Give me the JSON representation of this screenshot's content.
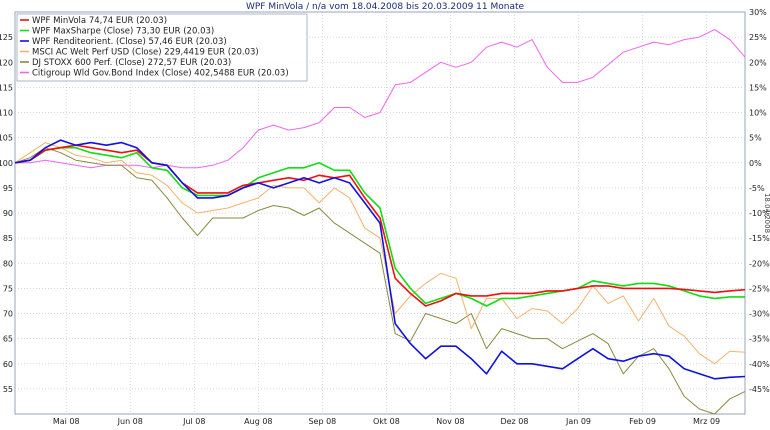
{
  "chart_data": {
    "type": "line",
    "title": "WPF MinVola / n/a vom 18.04.2008 bis 20.03.2009 11 Monate",
    "right_axis_date_label": "18.04.2008",
    "x_tick_labels": [
      "Mai 08",
      "Jun 08",
      "Jul 08",
      "Aug 08",
      "Sep 08",
      "Okt 08",
      "Nov 08",
      "Dez 08",
      "Jan 09",
      "Feb 09",
      "Mrz 09"
    ],
    "x_range": [
      0,
      48
    ],
    "left_axis": {
      "ylim": [
        50,
        130
      ],
      "ticks": [
        55,
        60,
        65,
        70,
        75,
        80,
        85,
        90,
        95,
        100,
        105,
        110,
        115,
        120,
        125
      ]
    },
    "right_axis": {
      "ylim": [
        -50,
        30
      ],
      "ticks": [
        30,
        25,
        20,
        15,
        10,
        5,
        0,
        -5,
        -10,
        -15,
        -20,
        -25,
        -30,
        -35,
        -40,
        -45
      ],
      "unit": "%"
    },
    "grid": true,
    "legend_position": "top-left",
    "series": [
      {
        "name": "WPF MinVola 74,74 EUR (20.03)",
        "color": "#ee1111",
        "values": [
          100,
          100.5,
          102.5,
          103,
          103.5,
          103,
          102.5,
          102,
          102.5,
          100,
          99.5,
          96,
          94,
          94,
          94,
          95.5,
          96,
          96.5,
          97,
          96.5,
          97.5,
          97,
          97.5,
          93,
          89,
          77,
          74,
          71.5,
          72.5,
          74,
          73.5,
          73.5,
          74,
          74,
          74,
          74.5,
          74.5,
          75,
          75.5,
          75.5,
          75,
          75,
          75,
          75,
          74.8,
          74.5,
          74.2,
          74.5,
          74.74
        ]
      },
      {
        "name": "WPF MaxSharpe (Close) 73,30 EUR (20.03)",
        "color": "#11dd11",
        "values": [
          100,
          100.5,
          102.5,
          103,
          103,
          102,
          101.5,
          101,
          102,
          99,
          98.5,
          95,
          93.5,
          93.5,
          93.5,
          95,
          97,
          98,
          99,
          99,
          100,
          98.5,
          98.5,
          94,
          91,
          79,
          75,
          72,
          73,
          74,
          73,
          71.5,
          73,
          73,
          73.5,
          74,
          74.5,
          75,
          76.5,
          76,
          75.5,
          76,
          76,
          75.5,
          74.5,
          73.5,
          73,
          73.3,
          73.3
        ]
      },
      {
        "name": "WPF Renditeorient. (Close) 57,46 EUR (20.03)",
        "color": "#1111dd",
        "values": [
          100,
          100.5,
          103,
          104.5,
          103.5,
          104,
          103.5,
          104,
          103,
          100,
          99.5,
          96,
          93,
          93,
          93.5,
          95,
          96,
          95,
          96,
          97,
          96,
          97,
          96,
          92,
          88,
          68,
          64,
          61,
          63.5,
          63.5,
          61,
          58,
          62.5,
          60,
          60,
          59.5,
          59,
          61,
          63,
          61,
          60.5,
          61.5,
          62,
          61.5,
          59,
          58,
          57,
          57.3,
          57.46
        ]
      },
      {
        "name": "MSCI AC Welt Perf USD (Close) 229,4419 EUR (20.03)",
        "color": "#f4b26c",
        "values": [
          100,
          102,
          104,
          103,
          101.5,
          101,
          100,
          100.5,
          98,
          97.5,
          95.5,
          92,
          90,
          90.5,
          91,
          92,
          93,
          95.5,
          95,
          95,
          92,
          95,
          93,
          87,
          85,
          70,
          73.5,
          76,
          78,
          77,
          67,
          73,
          73,
          69,
          71,
          70.5,
          68,
          71,
          75.5,
          72,
          73.5,
          68.5,
          73,
          67.5,
          65.5,
          62,
          60,
          62.5,
          62.3
        ]
      },
      {
        "name": "DJ STOXX 600 Perf. (Close) 272,57 EUR (20.03)",
        "color": "#8a8a40",
        "values": [
          100,
          101,
          103,
          102,
          100.5,
          100,
          99.5,
          99.5,
          97,
          96.5,
          93,
          89,
          85.5,
          89,
          89,
          89,
          90.5,
          91.5,
          91,
          89.5,
          91,
          88,
          86,
          84,
          82,
          66,
          64.5,
          70,
          69,
          68,
          70,
          63,
          67,
          66,
          65,
          65,
          63,
          64.5,
          66,
          64,
          58,
          61.5,
          63,
          59,
          53.5,
          51,
          50,
          53,
          54.5
        ]
      },
      {
        "name": "Citigroup Wld Gov.Bond Index (Close) 402,5488 EUR (20.03)",
        "color": "#ee66ee",
        "values": [
          100,
          100,
          100.5,
          100,
          99.5,
          99,
          99.5,
          99.5,
          99.5,
          99,
          99.5,
          99,
          99,
          99.5,
          100.5,
          103,
          106.5,
          107.5,
          106.5,
          107,
          108,
          111,
          111,
          109,
          110,
          115.5,
          116,
          118,
          120,
          119,
          120,
          123,
          124,
          123,
          124.5,
          119,
          116,
          116,
          117,
          119.5,
          122,
          123,
          124,
          123.5,
          124.5,
          125,
          126.5,
          124.5,
          121
        ]
      }
    ]
  }
}
